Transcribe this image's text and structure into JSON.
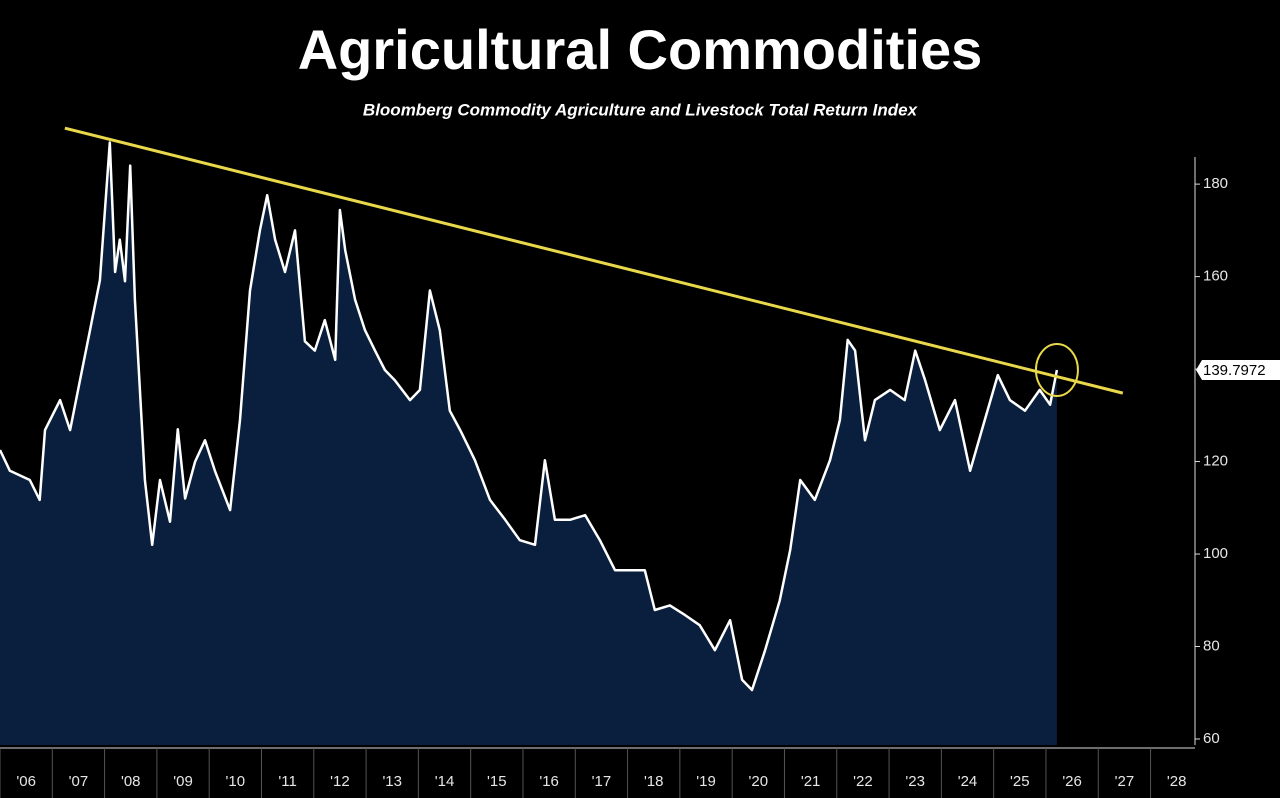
{
  "chart_data": {
    "type": "area",
    "title": "Agricultural Commodities",
    "subtitle": "Bloomberg Commodity Agriculture and Livestock Total Return Index",
    "x": [
      2006.0,
      2006.19,
      2006.57,
      2006.76,
      2006.86,
      2007.15,
      2007.34,
      2007.53,
      2007.72,
      2007.91,
      2008.1,
      2008.2,
      2008.29,
      2008.39,
      2008.49,
      2008.58,
      2008.77,
      2008.91,
      2009.06,
      2009.25,
      2009.4,
      2009.54,
      2009.73,
      2009.92,
      2010.11,
      2010.4,
      2010.59,
      2010.78,
      2010.97,
      2011.11,
      2011.26,
      2011.45,
      2011.64,
      2011.83,
      2012.02,
      2012.21,
      2012.41,
      2012.5,
      2012.6,
      2012.79,
      2012.98,
      2013.17,
      2013.36,
      2013.55,
      2013.84,
      2014.03,
      2014.22,
      2014.41,
      2014.6,
      2014.8,
      2015.08,
      2015.37,
      2015.66,
      2015.94,
      2016.23,
      2016.42,
      2016.61,
      2016.9,
      2017.19,
      2017.47,
      2017.76,
      2018.05,
      2018.33,
      2018.52,
      2018.81,
      2019.1,
      2019.38,
      2019.67,
      2019.96,
      2020.19,
      2020.38,
      2020.63,
      2020.91,
      2021.11,
      2021.3,
      2021.58,
      2021.87,
      2022.06,
      2022.21,
      2022.35,
      2022.54,
      2022.73,
      2023.02,
      2023.3,
      2023.5,
      2023.69,
      2023.97,
      2024.26,
      2024.55,
      2024.83,
      2025.08,
      2025.31,
      2025.6,
      2025.88,
      2026.08,
      2026.21
    ],
    "values": [
      122.5,
      118,
      116,
      111.7,
      126.8,
      133.3,
      126.8,
      137.6,
      148.4,
      159.2,
      189,
      161,
      168,
      159,
      184,
      155,
      116,
      102,
      116,
      107,
      127,
      112,
      120,
      124.6,
      118,
      109.5,
      129,
      157,
      170,
      177.6,
      168,
      161,
      170,
      146,
      144,
      150.6,
      142,
      174.4,
      165.7,
      155,
      148.4,
      144,
      139.8,
      137.6,
      133.3,
      135.5,
      157,
      148.4,
      131,
      126.8,
      120.3,
      111.7,
      107.4,
      103,
      102,
      120.3,
      107.4,
      107.4,
      108.4,
      103,
      96.5,
      96.5,
      96.5,
      87.9,
      88.9,
      86.8,
      84.6,
      79.2,
      85.7,
      72.8,
      70.6,
      79.2,
      90,
      100.9,
      116,
      111.7,
      120.3,
      129,
      146.3,
      144,
      124.6,
      133.3,
      135.5,
      133.3,
      144,
      137.6,
      126.8,
      133.3,
      118,
      129,
      138.7,
      133.3,
      131,
      135.5,
      132.3,
      139.7972
    ],
    "color": "#ffffff",
    "fill": "#0a1f3d",
    "ylim": [
      58.7,
      193
    ],
    "yticks": [
      60,
      80,
      100,
      120,
      140,
      160,
      180
    ],
    "xlim": [
      2006,
      2028.85
    ],
    "xticks": [
      {
        "value": 2006,
        "label": "'06"
      },
      {
        "value": 2007,
        "label": "'07"
      },
      {
        "value": 2008,
        "label": "'08"
      },
      {
        "value": 2009,
        "label": "'09"
      },
      {
        "value": 2010,
        "label": "'10"
      },
      {
        "value": 2011,
        "label": "'11"
      },
      {
        "value": 2012,
        "label": "'12"
      },
      {
        "value": 2013,
        "label": "'13"
      },
      {
        "value": 2014,
        "label": "'14"
      },
      {
        "value": 2015,
        "label": "'15"
      },
      {
        "value": 2016,
        "label": "'16"
      },
      {
        "value": 2017,
        "label": "'17"
      },
      {
        "value": 2018,
        "label": "'18"
      },
      {
        "value": 2019,
        "label": "'19"
      },
      {
        "value": 2020,
        "label": "'20"
      },
      {
        "value": 2021,
        "label": "'21"
      },
      {
        "value": 2022,
        "label": "'22"
      },
      {
        "value": 2023,
        "label": "'23"
      },
      {
        "value": 2024,
        "label": "'24"
      },
      {
        "value": 2025,
        "label": "'25"
      },
      {
        "value": 2026,
        "label": "'26"
      },
      {
        "value": 2027,
        "label": "'27"
      },
      {
        "value": 2028,
        "label": "'28"
      }
    ],
    "trendline": {
      "x": [
        2007.24,
        2027.47
      ],
      "values": [
        192.1,
        134.8
      ],
      "color": "#e8d84a"
    }
  }
}
